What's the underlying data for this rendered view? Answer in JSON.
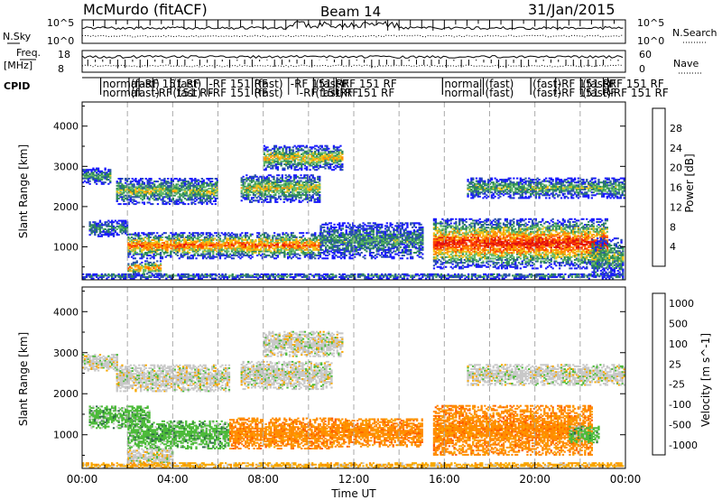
{
  "header": {
    "radar": "McMurdo (fitACF)",
    "beam": "Beam 14",
    "date": "31/Jan/2015"
  },
  "status_panels": {
    "nsky_label": "N.Sky",
    "nsky_ticks": [
      "10^5",
      "10^0"
    ],
    "nsearch_label": "N.Search",
    "nsearch_ticks": [
      "10^5",
      "10^0"
    ],
    "freq_label_top": "Freq.",
    "freq_label_unit": "[MHz]",
    "freq_ticks": [
      "18",
      "8"
    ],
    "nave_label": "Nave",
    "nave_ticks": [
      "60",
      "0"
    ],
    "cpid_label": "CPID",
    "cpid_labels": [
      {
        "t": 0.9,
        "row": 0,
        "text": "normal"
      },
      {
        "t": 0.9,
        "row": 1,
        "text": "normal"
      },
      {
        "t": 2.15,
        "row": 0,
        "text": "(fast)"
      },
      {
        "t": 2.15,
        "row": 1,
        "text": "(fast)"
      },
      {
        "t": 2.6,
        "row": 0,
        "text": "-RF 151 RF"
      },
      {
        "t": 3.2,
        "row": 1,
        "text": "-RF 151 RF"
      },
      {
        "t": 4.0,
        "row": 0,
        "text": "(fast)"
      },
      {
        "t": 4.0,
        "row": 1,
        "text": "(fast)"
      },
      {
        "t": 5.6,
        "row": 0,
        "text": "-RF 151 RF"
      },
      {
        "t": 5.6,
        "row": 1,
        "text": "-RF 151 RF"
      },
      {
        "t": 7.6,
        "row": 0,
        "text": "(fast)"
      },
      {
        "t": 7.6,
        "row": 1,
        "text": "(fast)"
      },
      {
        "t": 9.2,
        "row": 0,
        "text": "-RF 151 RF"
      },
      {
        "t": 9.6,
        "row": 1,
        "text": "-RF 151 RF"
      },
      {
        "t": 10.3,
        "row": 0,
        "text": "(fast)"
      },
      {
        "t": 10.3,
        "row": 1,
        "text": "(fast)"
      },
      {
        "t": 11.3,
        "row": 0,
        "text": "-RF 151 RF"
      },
      {
        "t": 11.2,
        "row": 1,
        "text": "-RF 151 RF"
      },
      {
        "t": 16.0,
        "row": 0,
        "text": "normal"
      },
      {
        "t": 16.0,
        "row": 1,
        "text": "normal"
      },
      {
        "t": 17.8,
        "row": 0,
        "text": "(fast)"
      },
      {
        "t": 17.8,
        "row": 1,
        "text": "(fast)"
      },
      {
        "t": 19.9,
        "row": 0,
        "text": "(fast)"
      },
      {
        "t": 19.9,
        "row": 1,
        "text": "(fast)"
      },
      {
        "t": 21.0,
        "row": 0,
        "text": "-RF 151 RF"
      },
      {
        "t": 21.0,
        "row": 1,
        "text": "-RF 151 RF"
      },
      {
        "t": 22.1,
        "row": 0,
        "text": "(fast)"
      },
      {
        "t": 22.1,
        "row": 1,
        "text": "(fast)"
      },
      {
        "t": 23.1,
        "row": 0,
        "text": "-RF 151 RF"
      },
      {
        "t": 23.3,
        "row": 1,
        "text": "-RF 151 RF"
      }
    ]
  },
  "chart_data": [
    {
      "type": "heatmap",
      "title": "",
      "xlabel": "Time UT",
      "ylabel": "Slant Range [km]",
      "x_ticks": [
        "00:00",
        "04:00",
        "08:00",
        "12:00",
        "16:00",
        "20:00",
        "00:00"
      ],
      "xlim_hours": [
        0,
        24
      ],
      "ylim": [
        180,
        4600
      ],
      "y_ticks": [
        1000,
        2000,
        3000,
        4000
      ],
      "grid": "dashed vertical every 2 h",
      "colorbar": {
        "label": "Power [dB]",
        "min": 0,
        "max": 32,
        "ticks": [
          4,
          8,
          12,
          16,
          20,
          24,
          28
        ],
        "colors": [
          "#1a1aff",
          "#2b55a8",
          "#2e8b57",
          "#66bb6a",
          "#f3c316",
          "#ff8c00",
          "#ff4500",
          "#e01010"
        ]
      },
      "echo_bands": [
        {
          "t0": 0.0,
          "t1": 1.2,
          "r0": 2550,
          "r1": 2950,
          "level": 0.35
        },
        {
          "t0": 0.0,
          "t1": 24.0,
          "r0": 200,
          "r1": 330,
          "level": 0.3
        },
        {
          "t0": 0.3,
          "t1": 2.0,
          "r0": 1250,
          "r1": 1650,
          "level": 0.3
        },
        {
          "t0": 1.5,
          "t1": 6.0,
          "r0": 2050,
          "r1": 2700,
          "level": 0.5
        },
        {
          "t0": 2.0,
          "t1": 3.5,
          "r0": 280,
          "r1": 650,
          "level": 0.75
        },
        {
          "t0": 2.0,
          "t1": 10.5,
          "r0": 700,
          "r1": 1350,
          "level": 0.8
        },
        {
          "t0": 7.0,
          "t1": 10.5,
          "r0": 2100,
          "r1": 2800,
          "level": 0.55
        },
        {
          "t0": 8.0,
          "t1": 11.5,
          "r0": 2900,
          "r1": 3500,
          "level": 0.6
        },
        {
          "t0": 10.5,
          "t1": 15.0,
          "r0": 700,
          "r1": 1600,
          "level": 0.35
        },
        {
          "t0": 15.5,
          "t1": 23.2,
          "r0": 450,
          "r1": 1700,
          "level": 0.95
        },
        {
          "t0": 17.0,
          "t1": 24.0,
          "r0": 2200,
          "r1": 2700,
          "level": 0.45
        },
        {
          "t0": 22.5,
          "t1": 24.0,
          "r0": 250,
          "r1": 1200,
          "level": 0.45
        }
      ]
    },
    {
      "type": "heatmap",
      "title": "",
      "xlabel": "Time UT",
      "ylabel": "Slant Range [km]",
      "x_ticks": [
        "00:00",
        "04:00",
        "08:00",
        "12:00",
        "16:00",
        "20:00",
        "00:00"
      ],
      "xlim_hours": [
        0,
        24
      ],
      "ylim": [
        180,
        4600
      ],
      "y_ticks": [
        1000,
        2000,
        3000,
        4000
      ],
      "grid": "dashed vertical every 2 h",
      "colorbar": {
        "label": "Velocity [m s^-1]",
        "tick_labels": [
          "1000",
          "500",
          "100",
          "25",
          "-25",
          "-100",
          "-500",
          "-1000"
        ],
        "colors": [
          "#1a2bbf",
          "#2e6b4a",
          "#4dbb3a",
          "#c8c8c8",
          "#f8a800",
          "#ff8c00",
          "#ff5a00",
          "#e01010"
        ]
      },
      "echo_bands": [
        {
          "t0": 0.0,
          "t1": 1.5,
          "r0": 2550,
          "r1": 2950,
          "category": 3
        },
        {
          "t0": 0.3,
          "t1": 3.0,
          "r0": 1150,
          "r1": 1700,
          "category": 2
        },
        {
          "t0": 1.5,
          "t1": 6.5,
          "r0": 2050,
          "r1": 2700,
          "category": 3
        },
        {
          "t0": 2.0,
          "t1": 6.5,
          "r0": 650,
          "r1": 1350,
          "category": 2
        },
        {
          "t0": 2.0,
          "t1": 4.0,
          "r0": 250,
          "r1": 650,
          "category": 3
        },
        {
          "t0": 6.5,
          "t1": 11.0,
          "r0": 650,
          "r1": 1400,
          "category": 5
        },
        {
          "t0": 7.0,
          "t1": 11.0,
          "r0": 2100,
          "r1": 2800,
          "category": 3
        },
        {
          "t0": 8.0,
          "t1": 11.5,
          "r0": 2900,
          "r1": 3500,
          "category": 3
        },
        {
          "t0": 11.0,
          "t1": 15.0,
          "r0": 700,
          "r1": 1400,
          "category": 5
        },
        {
          "t0": 15.5,
          "t1": 22.5,
          "r0": 500,
          "r1": 1700,
          "category": 5
        },
        {
          "t0": 17.0,
          "t1": 24.0,
          "r0": 2200,
          "r1": 2700,
          "category": 3
        },
        {
          "t0": 21.5,
          "t1": 22.8,
          "r0": 800,
          "r1": 1200,
          "category": 2
        },
        {
          "t0": 0.0,
          "t1": 24.0,
          "r0": 190,
          "r1": 300,
          "category": 4
        }
      ]
    }
  ]
}
